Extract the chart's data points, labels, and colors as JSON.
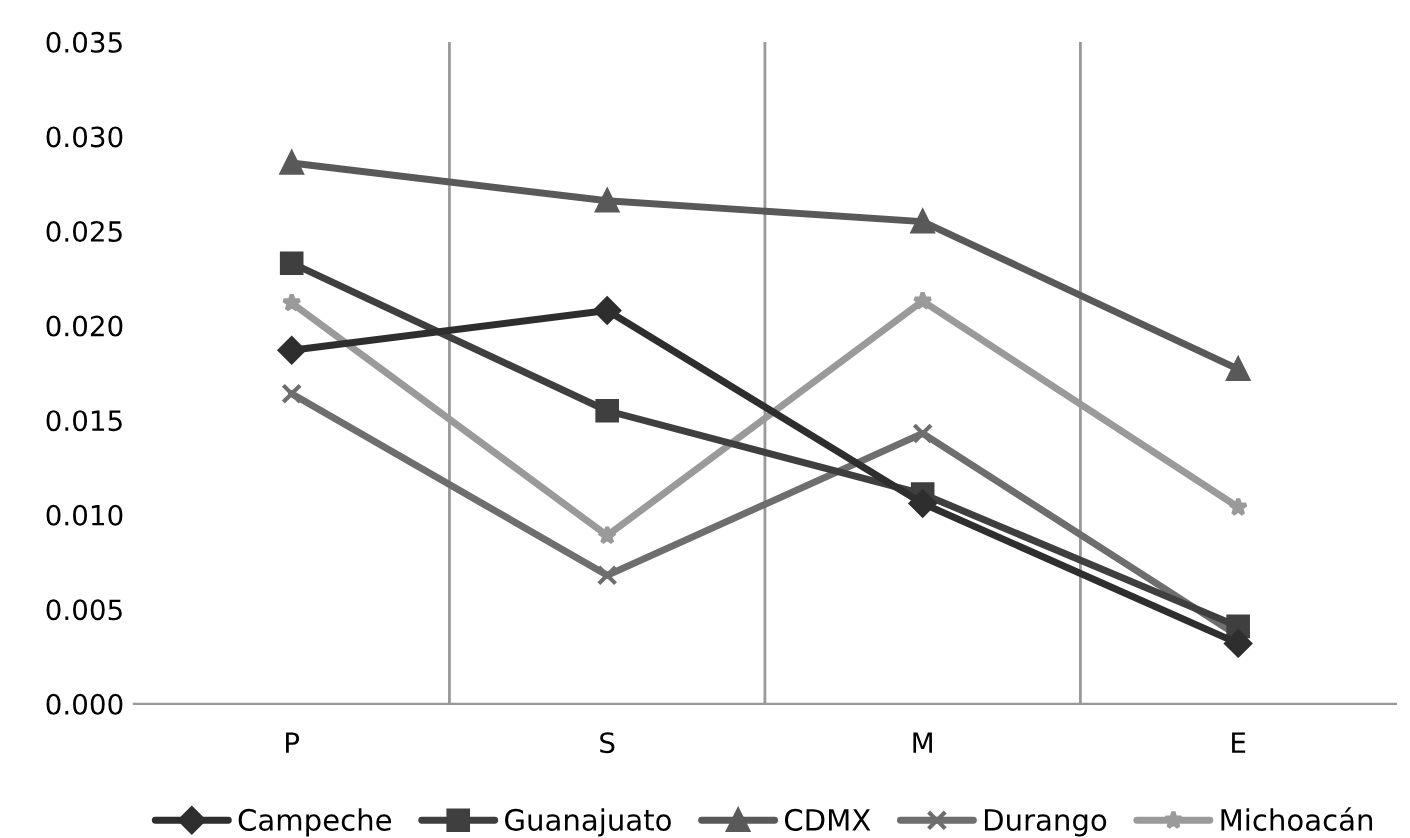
{
  "chart_data": {
    "type": "line",
    "categories": [
      "P",
      "S",
      "M",
      "E"
    ],
    "series": [
      {
        "name": "Campeche",
        "color": "#2e2e2e",
        "marker": "diamond",
        "values": [
          0.0187,
          0.0208,
          0.0106,
          0.0032
        ]
      },
      {
        "name": "Guanajuato",
        "color": "#3f3f3f",
        "marker": "square",
        "values": [
          0.0233,
          0.0155,
          0.0111,
          0.0041
        ]
      },
      {
        "name": "CDMX",
        "color": "#595959",
        "marker": "triangle",
        "values": [
          0.0286,
          0.0266,
          0.0255,
          0.0177
        ]
      },
      {
        "name": "Durango",
        "color": "#6e6e6e",
        "marker": "cross",
        "values": [
          0.0164,
          0.0068,
          0.0143,
          0.0036
        ]
      },
      {
        "name": "Michoacán",
        "color": "#9a9a9a",
        "marker": "star",
        "values": [
          0.0212,
          0.0089,
          0.0213,
          0.0104
        ]
      }
    ],
    "ylim": [
      0,
      0.035
    ],
    "yticks": [
      {
        "value": 0,
        "label": "0.000"
      },
      {
        "value": 0.005,
        "label": "0.005"
      },
      {
        "value": 0.01,
        "label": "0.010"
      },
      {
        "value": 0.015,
        "label": "0.015"
      },
      {
        "value": 0.02,
        "label": "0.020"
      },
      {
        "value": 0.025,
        "label": "0.025"
      },
      {
        "value": 0.03,
        "label": "0.030"
      },
      {
        "value": 0.035,
        "label": "0.035"
      }
    ],
    "grid": "x",
    "legend": "bottom",
    "line_style": "solid"
  }
}
